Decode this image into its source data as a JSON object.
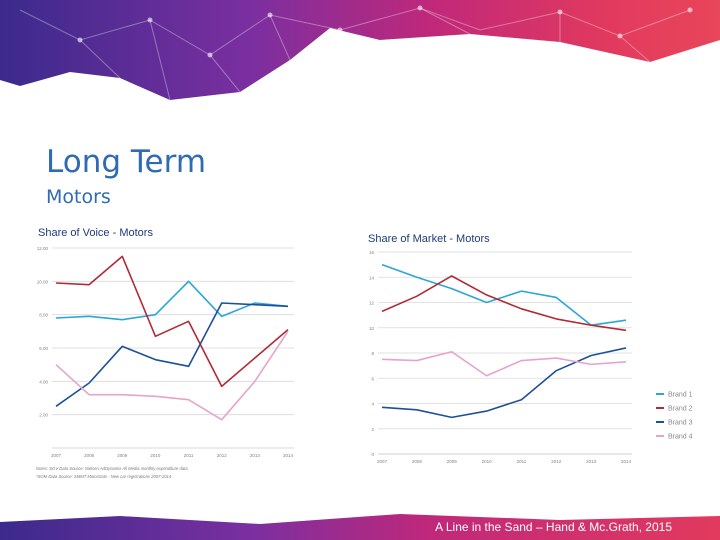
{
  "slide": {
    "title": "Long Term",
    "subtitle": "Motors",
    "footer": "A Line in the Sand – Hand & Mc.Grath, 2015"
  },
  "colors": {
    "banner_gradient": [
      "#3b2a8c",
      "#7b2fa0",
      "#c0287a",
      "#e23a5e",
      "#e8465a"
    ],
    "title_text": "#2f6bb3",
    "chart_title_text": "#1f3b7a",
    "brand_colors": [
      "#2aa7d6",
      "#b22a36",
      "#1e4f9c",
      "#e7a3c9"
    ]
  },
  "chart_data": [
    {
      "type": "line",
      "title": "Share of Voice - Motors",
      "x": [
        "2007",
        "2008",
        "2009",
        "2010",
        "2011",
        "2012",
        "2013",
        "2014"
      ],
      "ylim": [
        0,
        12
      ],
      "yticks": [
        "2.00",
        "4.00",
        "6.00",
        "8.00",
        "10.00",
        "12.00"
      ],
      "series": [
        {
          "name": "Brand 1",
          "values": [
            7.8,
            7.9,
            7.7,
            8.0,
            10.0,
            7.9,
            8.7,
            8.5
          ]
        },
        {
          "name": "Brand 2",
          "values": [
            9.9,
            9.8,
            11.5,
            6.7,
            7.6,
            3.7,
            5.4,
            7.1
          ]
        },
        {
          "name": "Brand 3",
          "values": [
            2.5,
            3.9,
            6.1,
            5.3,
            4.9,
            8.7,
            8.6,
            8.5
          ]
        },
        {
          "name": "Brand 4",
          "values": [
            5.0,
            3.2,
            3.2,
            3.1,
            2.9,
            1.7,
            4.0,
            7.0
          ]
        }
      ],
      "notes": [
        "Notes: SOV Data Source: Nielsen AdDynamix All Media monthly expenditure data",
        "*SOM Data Source: SMMT Motorstats - New car registrations 2007-2014"
      ],
      "grid": true
    },
    {
      "type": "line",
      "title": "Share of Market - Motors",
      "x": [
        "2007",
        "2008",
        "2009",
        "2010",
        "2011",
        "2012",
        "2013",
        "2014"
      ],
      "ylim": [
        0,
        16
      ],
      "yticks": [
        "0",
        "2",
        "4",
        "6",
        "8",
        "10",
        "12",
        "14",
        "16"
      ],
      "series": [
        {
          "name": "Brand 1",
          "values": [
            15.0,
            14.0,
            13.1,
            12.0,
            12.9,
            12.4,
            10.2,
            10.6
          ]
        },
        {
          "name": "Brand 2",
          "values": [
            11.3,
            12.5,
            14.1,
            12.6,
            11.5,
            10.7,
            10.2,
            9.8
          ]
        },
        {
          "name": "Brand 3",
          "values": [
            3.7,
            3.5,
            2.9,
            3.4,
            4.3,
            6.6,
            7.8,
            8.4
          ]
        },
        {
          "name": "Brand 4",
          "values": [
            7.5,
            7.4,
            8.1,
            6.2,
            7.4,
            7.6,
            7.1,
            7.3
          ]
        }
      ],
      "legend_position": "right",
      "grid": true
    }
  ]
}
